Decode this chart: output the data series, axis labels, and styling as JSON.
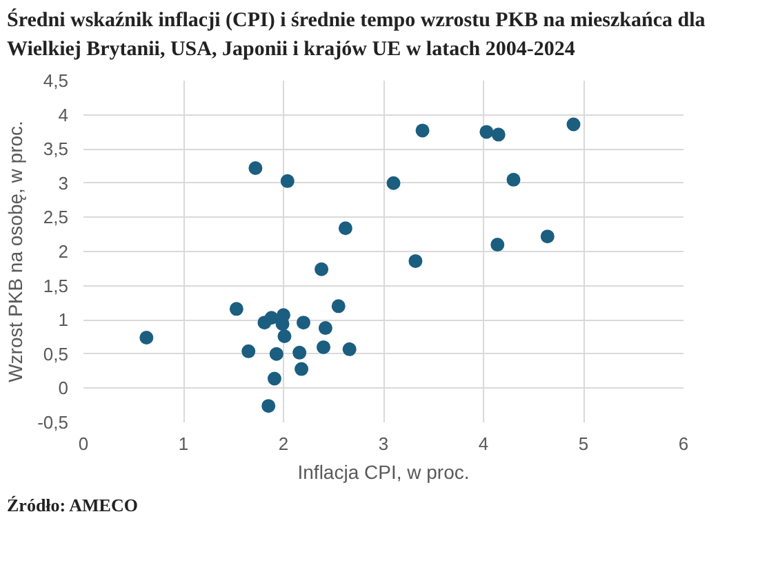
{
  "chart_data": {
    "type": "scatter",
    "title": "Średni wskaźnik inflacji (CPI) i średnie tempo wzrostu PKB na mieszkańca dla Wielkiej Brytanii, USA, Japonii i krajów UE w latach 2004-2024",
    "xlabel": "Inflacja CPI, w proc.",
    "ylabel": "Wzrost PKB na osobę, w proc.",
    "annotations": [
      "Źródło: AMECO"
    ],
    "x": [
      0.63,
      1.53,
      1.65,
      1.81,
      1.88,
      2.0,
      1.99,
      2.01,
      1.93,
      1.91,
      1.85,
      2.16,
      2.18,
      2.2,
      2.42,
      2.4,
      2.66,
      2.55,
      2.38,
      2.62,
      1.72,
      2.04,
      3.1,
      3.32,
      3.39,
      4.03,
      4.15,
      4.3,
      4.14,
      4.64,
      4.9
    ],
    "series": [
      {
        "color": "#1b5e80",
        "values": [
          0.74,
          1.16,
          0.54,
          0.96,
          1.03,
          1.07,
          0.94,
          0.76,
          0.5,
          0.14,
          -0.26,
          0.52,
          0.28,
          0.96,
          0.88,
          0.6,
          0.57,
          1.2,
          1.74,
          2.34,
          3.22,
          3.03,
          3.0,
          1.86,
          3.77,
          3.75,
          3.71,
          3.05,
          2.1,
          2.22,
          3.86
        ]
      }
    ],
    "xlim": [
      0,
      6
    ],
    "xticks": [
      0,
      1,
      2,
      3,
      4,
      5,
      6
    ],
    "ylim": [
      -0.5,
      4.5
    ],
    "yticks": [
      {
        "value": -0.5,
        "label": "-0,5"
      },
      0,
      {
        "value": 0.5,
        "label": "0,5"
      },
      1,
      {
        "value": 1.5,
        "label": "1,5"
      },
      2,
      {
        "value": 2.5,
        "label": "2,5"
      },
      3,
      {
        "value": 3.5,
        "label": "3,5"
      },
      4,
      {
        "value": 4.5,
        "label": "4,5"
      }
    ],
    "grid": true,
    "marker": "circle"
  }
}
